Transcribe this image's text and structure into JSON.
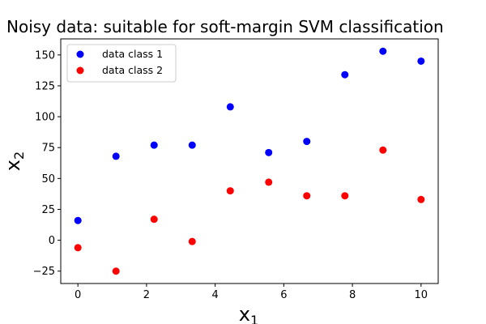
{
  "chart_data": {
    "type": "scatter",
    "title": "Noisy data: suitable for soft-margin SVM classification",
    "xlabel": {
      "base": "x",
      "sub": "1"
    },
    "ylabel": {
      "base": "x",
      "sub": "2"
    },
    "xlim": [
      -0.5,
      10.5
    ],
    "ylim": [
      -35,
      163
    ],
    "xticks": [
      0,
      2,
      4,
      6,
      8,
      10
    ],
    "yticks": [
      -25,
      0,
      25,
      50,
      75,
      100,
      125,
      150
    ],
    "xtick_labels": [
      "0",
      "2",
      "4",
      "6",
      "8",
      "10"
    ],
    "ytick_labels": [
      "−25",
      "0",
      "25",
      "50",
      "75",
      "100",
      "125",
      "150"
    ],
    "grid": false,
    "legend_position": "upper-left",
    "series": [
      {
        "name": "data class 1",
        "color": "#0000ff",
        "points": [
          [
            0.0,
            16
          ],
          [
            1.11,
            68
          ],
          [
            2.22,
            77
          ],
          [
            3.33,
            77
          ],
          [
            4.44,
            108
          ],
          [
            5.56,
            71
          ],
          [
            6.67,
            80
          ],
          [
            7.78,
            134
          ],
          [
            8.89,
            153
          ],
          [
            10.0,
            145
          ]
        ]
      },
      {
        "name": "data class 2",
        "color": "#ff0000",
        "points": [
          [
            0.0,
            -6
          ],
          [
            1.11,
            -25
          ],
          [
            2.22,
            17
          ],
          [
            3.33,
            -1
          ],
          [
            4.44,
            40
          ],
          [
            5.56,
            47
          ],
          [
            6.67,
            36
          ],
          [
            7.78,
            36
          ],
          [
            8.89,
            73
          ],
          [
            10.0,
            33
          ]
        ]
      }
    ]
  }
}
